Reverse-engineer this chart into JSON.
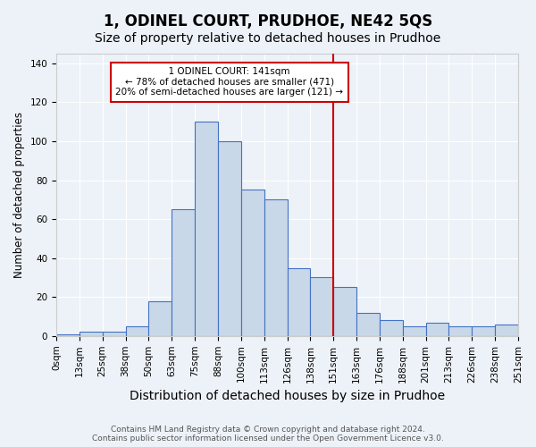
{
  "title": "1, ODINEL COURT, PRUDHOE, NE42 5QS",
  "subtitle": "Size of property relative to detached houses in Prudhoe",
  "xlabel": "Distribution of detached houses by size in Prudhoe",
  "ylabel": "Number of detached properties",
  "footer": "Contains HM Land Registry data © Crown copyright and database right 2024.\nContains public sector information licensed under the Open Government Licence v3.0.",
  "categories": [
    "0sqm",
    "13sqm",
    "25sqm",
    "38sqm",
    "50sqm",
    "63sqm",
    "75sqm",
    "88sqm",
    "100sqm",
    "113sqm",
    "126sqm",
    "138sqm",
    "151sqm",
    "163sqm",
    "176sqm",
    "188sqm",
    "201sqm",
    "213sqm",
    "226sqm",
    "238sqm",
    "251sqm"
  ],
  "bar_values": [
    1,
    2,
    2,
    5,
    18,
    65,
    110,
    100,
    75,
    70,
    35,
    30,
    25,
    12,
    8,
    5,
    7,
    5,
    5,
    6
  ],
  "bar_color": "#c8d8e8",
  "bar_edge_color": "#4472c4",
  "property_line_x": 12.0,
  "property_line_label": "1 ODINEL COURT: 141sqm",
  "annotation_line1": "← 78% of detached houses are smaller (471)",
  "annotation_line2": "20% of semi-detached houses are larger (121) →",
  "annotation_box_color": "#ffffff",
  "annotation_box_edge": "#cc0000",
  "line_color": "#cc0000",
  "ylim": [
    0,
    145
  ],
  "title_fontsize": 12,
  "subtitle_fontsize": 10,
  "xlabel_fontsize": 10,
  "ylabel_fontsize": 8.5,
  "tick_fontsize": 7.5,
  "footer_fontsize": 6.5,
  "background_color": "#edf2f8"
}
